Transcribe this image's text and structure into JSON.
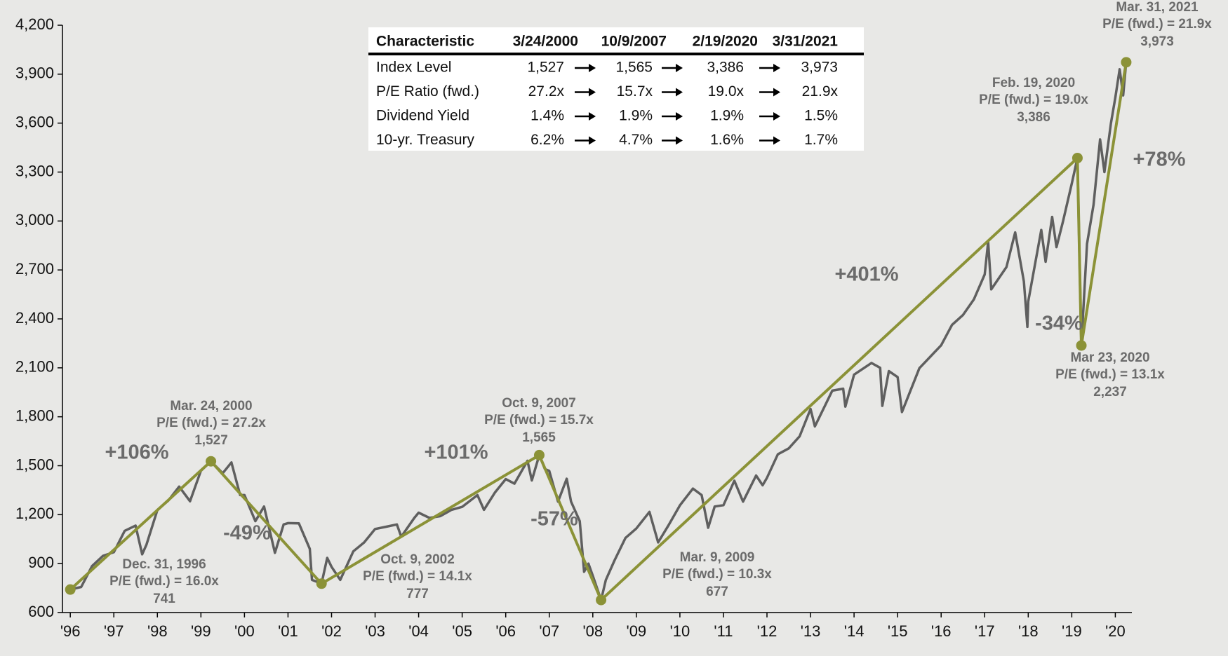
{
  "chart_data": {
    "type": "line",
    "xlim": [
      1996.82,
      2021.38
    ],
    "ylim": [
      600,
      4200
    ],
    "yticks": [
      600,
      900,
      {
        "value": 1200,
        "label": "1,200"
      },
      {
        "value": 1500,
        "label": "1,500"
      },
      {
        "value": 1800,
        "label": "1,800"
      },
      {
        "value": 2100,
        "label": "2,100"
      },
      {
        "value": 2400,
        "label": "2,400"
      },
      {
        "value": 2700,
        "label": "2,700"
      },
      {
        "value": 3000,
        "label": "3,000"
      },
      {
        "value": 3300,
        "label": "3,300"
      },
      {
        "value": 3600,
        "label": "3,600"
      },
      {
        "value": 3900,
        "label": "3,900"
      },
      {
        "value": 4200,
        "label": "4,200"
      }
    ],
    "xticks": [
      {
        "value": 1997,
        "label": "'96"
      },
      {
        "value": 1998,
        "label": "'97"
      },
      {
        "value": 1999,
        "label": "'98"
      },
      {
        "value": 2000,
        "label": "'99"
      },
      {
        "value": 2001,
        "label": "'00"
      },
      {
        "value": 2002,
        "label": "'01"
      },
      {
        "value": 2003,
        "label": "'02"
      },
      {
        "value": 2004,
        "label": "'03"
      },
      {
        "value": 2005,
        "label": "'04"
      },
      {
        "value": 2006,
        "label": "'05"
      },
      {
        "value": 2007,
        "label": "'06"
      },
      {
        "value": 2008,
        "label": "'07"
      },
      {
        "value": 2009,
        "label": "'08"
      },
      {
        "value": 2010,
        "label": "'09"
      },
      {
        "value": 2011,
        "label": "'10"
      },
      {
        "value": 2012,
        "label": "'11"
      },
      {
        "value": 2013,
        "label": "'12"
      },
      {
        "value": 2014,
        "label": "'13"
      },
      {
        "value": 2015,
        "label": "'14"
      },
      {
        "value": 2016,
        "label": "'15"
      },
      {
        "value": 2017,
        "label": "'16"
      },
      {
        "value": 2018,
        "label": "'17"
      },
      {
        "value": 2019,
        "label": "'18"
      },
      {
        "value": 2020,
        "label": "'19"
      },
      {
        "value": 2021,
        "label": "'20"
      }
    ],
    "series": [
      {
        "color": "#5f5f5f",
        "x": [
          1997.0,
          1997.25,
          1997.5,
          1997.75,
          1998.0,
          1998.25,
          1998.5,
          1998.65,
          1998.75,
          1999.0,
          1999.25,
          1999.5,
          1999.75,
          2000.0,
          2000.23,
          2000.5,
          2000.7,
          2000.9,
          2001.0,
          2001.25,
          2001.45,
          2001.7,
          2001.9,
          2002.0,
          2002.25,
          2002.5,
          2002.55,
          2002.77,
          2002.9,
          2003.0,
          2003.2,
          2003.5,
          2003.75,
          2004.0,
          2004.25,
          2004.5,
          2004.6,
          2004.9,
          2005.0,
          2005.25,
          2005.5,
          2005.75,
          2006.0,
          2006.35,
          2006.5,
          2006.75,
          2007.0,
          2007.2,
          2007.5,
          2007.6,
          2007.77,
          2007.9,
          2008.0,
          2008.2,
          2008.4,
          2008.5,
          2008.7,
          2008.8,
          2008.9,
          2009.0,
          2009.19,
          2009.3,
          2009.5,
          2009.75,
          2010.0,
          2010.3,
          2010.5,
          2010.75,
          2011.0,
          2011.3,
          2011.5,
          2011.65,
          2011.8,
          2012.0,
          2012.25,
          2012.45,
          2012.75,
          2012.9,
          2013.0,
          2013.25,
          2013.5,
          2013.75,
          2014.0,
          2014.1,
          2014.5,
          2014.75,
          2014.8,
          2015.0,
          2015.4,
          2015.6,
          2015.65,
          2015.8,
          2016.0,
          2016.1,
          2016.5,
          2016.75,
          2017.0,
          2017.25,
          2017.5,
          2017.75,
          2018.0,
          2018.08,
          2018.15,
          2018.5,
          2018.7,
          2018.9,
          2018.98,
          2019.0,
          2019.3,
          2019.4,
          2019.55,
          2019.65,
          2019.8,
          2020.0,
          2020.13,
          2020.22,
          2020.35,
          2020.5,
          2020.65,
          2020.75,
          2020.9,
          2021.0,
          2021.1,
          2021.18,
          2021.25
        ],
        "values": [
          741,
          757,
          885,
          947,
          970,
          1101,
          1133,
          957,
          1017,
          1229,
          1286,
          1372,
          1282,
          1469,
          1527,
          1454,
          1520,
          1320,
          1320,
          1160,
          1250,
          966,
          1140,
          1148,
          1147,
          990,
          800,
          777,
          935,
          880,
          800,
          975,
          1030,
          1112,
          1126,
          1140,
          1065,
          1180,
          1212,
          1180,
          1191,
          1229,
          1248,
          1320,
          1230,
          1335,
          1418,
          1390,
          1530,
          1410,
          1565,
          1480,
          1468,
          1280,
          1420,
          1280,
          1160,
          850,
          900,
          825,
          677,
          800,
          920,
          1057,
          1115,
          1217,
          1030,
          1140,
          1257,
          1360,
          1320,
          1120,
          1250,
          1258,
          1408,
          1280,
          1440,
          1380,
          1426,
          1570,
          1606,
          1680,
          1848,
          1741,
          1960,
          1972,
          1862,
          2058,
          2130,
          2100,
          1867,
          2080,
          2043,
          1829,
          2098,
          2168,
          2238,
          2363,
          2423,
          2519,
          2673,
          2872,
          2581,
          2718,
          2930,
          2630,
          2351,
          2506,
          2945,
          2750,
          3025,
          2840,
          3000,
          3230,
          3386,
          2237,
          2860,
          3100,
          3500,
          3300,
          3600,
          3756,
          3930,
          3770,
          3973
        ]
      }
    ],
    "trend": {
      "color": "#8b9237",
      "x": [
        1997.0,
        2000.23,
        2002.77,
        2007.77,
        2009.19,
        2020.13,
        2020.22,
        2021.25
      ],
      "values": [
        741,
        1527,
        777,
        1565,
        677,
        3386,
        2237,
        3973
      ],
      "value_labels": [
        "741",
        "1,527",
        "777",
        "1,565",
        "677",
        "3,386",
        "2,237",
        "3,973"
      ],
      "dates": [
        "Dec. 31, 1996",
        "Mar. 24, 2000",
        "Oct. 9, 2002",
        "Oct. 9, 2007",
        "Mar. 9, 2009",
        "Feb. 19, 2020",
        "Mar 23, 2020",
        "Mar. 31, 2021"
      ],
      "pe": [
        "P/E (fwd.) = 16.0x",
        "P/E (fwd.) = 27.2x",
        "P/E (fwd.) = 14.1x",
        "P/E (fwd.) = 15.7x",
        "P/E (fwd.) = 10.3x",
        "P/E (fwd.) = 19.0x",
        "P/E (fwd.) = 13.1x",
        "P/E (fwd.) = 21.9x"
      ]
    },
    "changes": [
      "+106%",
      "-49%",
      "+101%",
      "-57%",
      "+401%",
      "-34%",
      "+78%"
    ],
    "table": {
      "header": [
        "Characteristic",
        "3/24/2000",
        "10/9/2007",
        "2/19/2020",
        "3/31/2021"
      ],
      "rows": [
        [
          "Index Level",
          "1,527",
          "1,565",
          "3,386",
          "3,973"
        ],
        [
          "P/E Ratio (fwd.)",
          "27.2x",
          "15.7x",
          "19.0x",
          "21.9x"
        ],
        [
          "Dividend Yield",
          "1.4%",
          "1.9%",
          "1.9%",
          "1.5%"
        ],
        [
          "10-yr. Treasury",
          "6.2%",
          "4.7%",
          "1.6%",
          "1.7%"
        ]
      ]
    }
  }
}
